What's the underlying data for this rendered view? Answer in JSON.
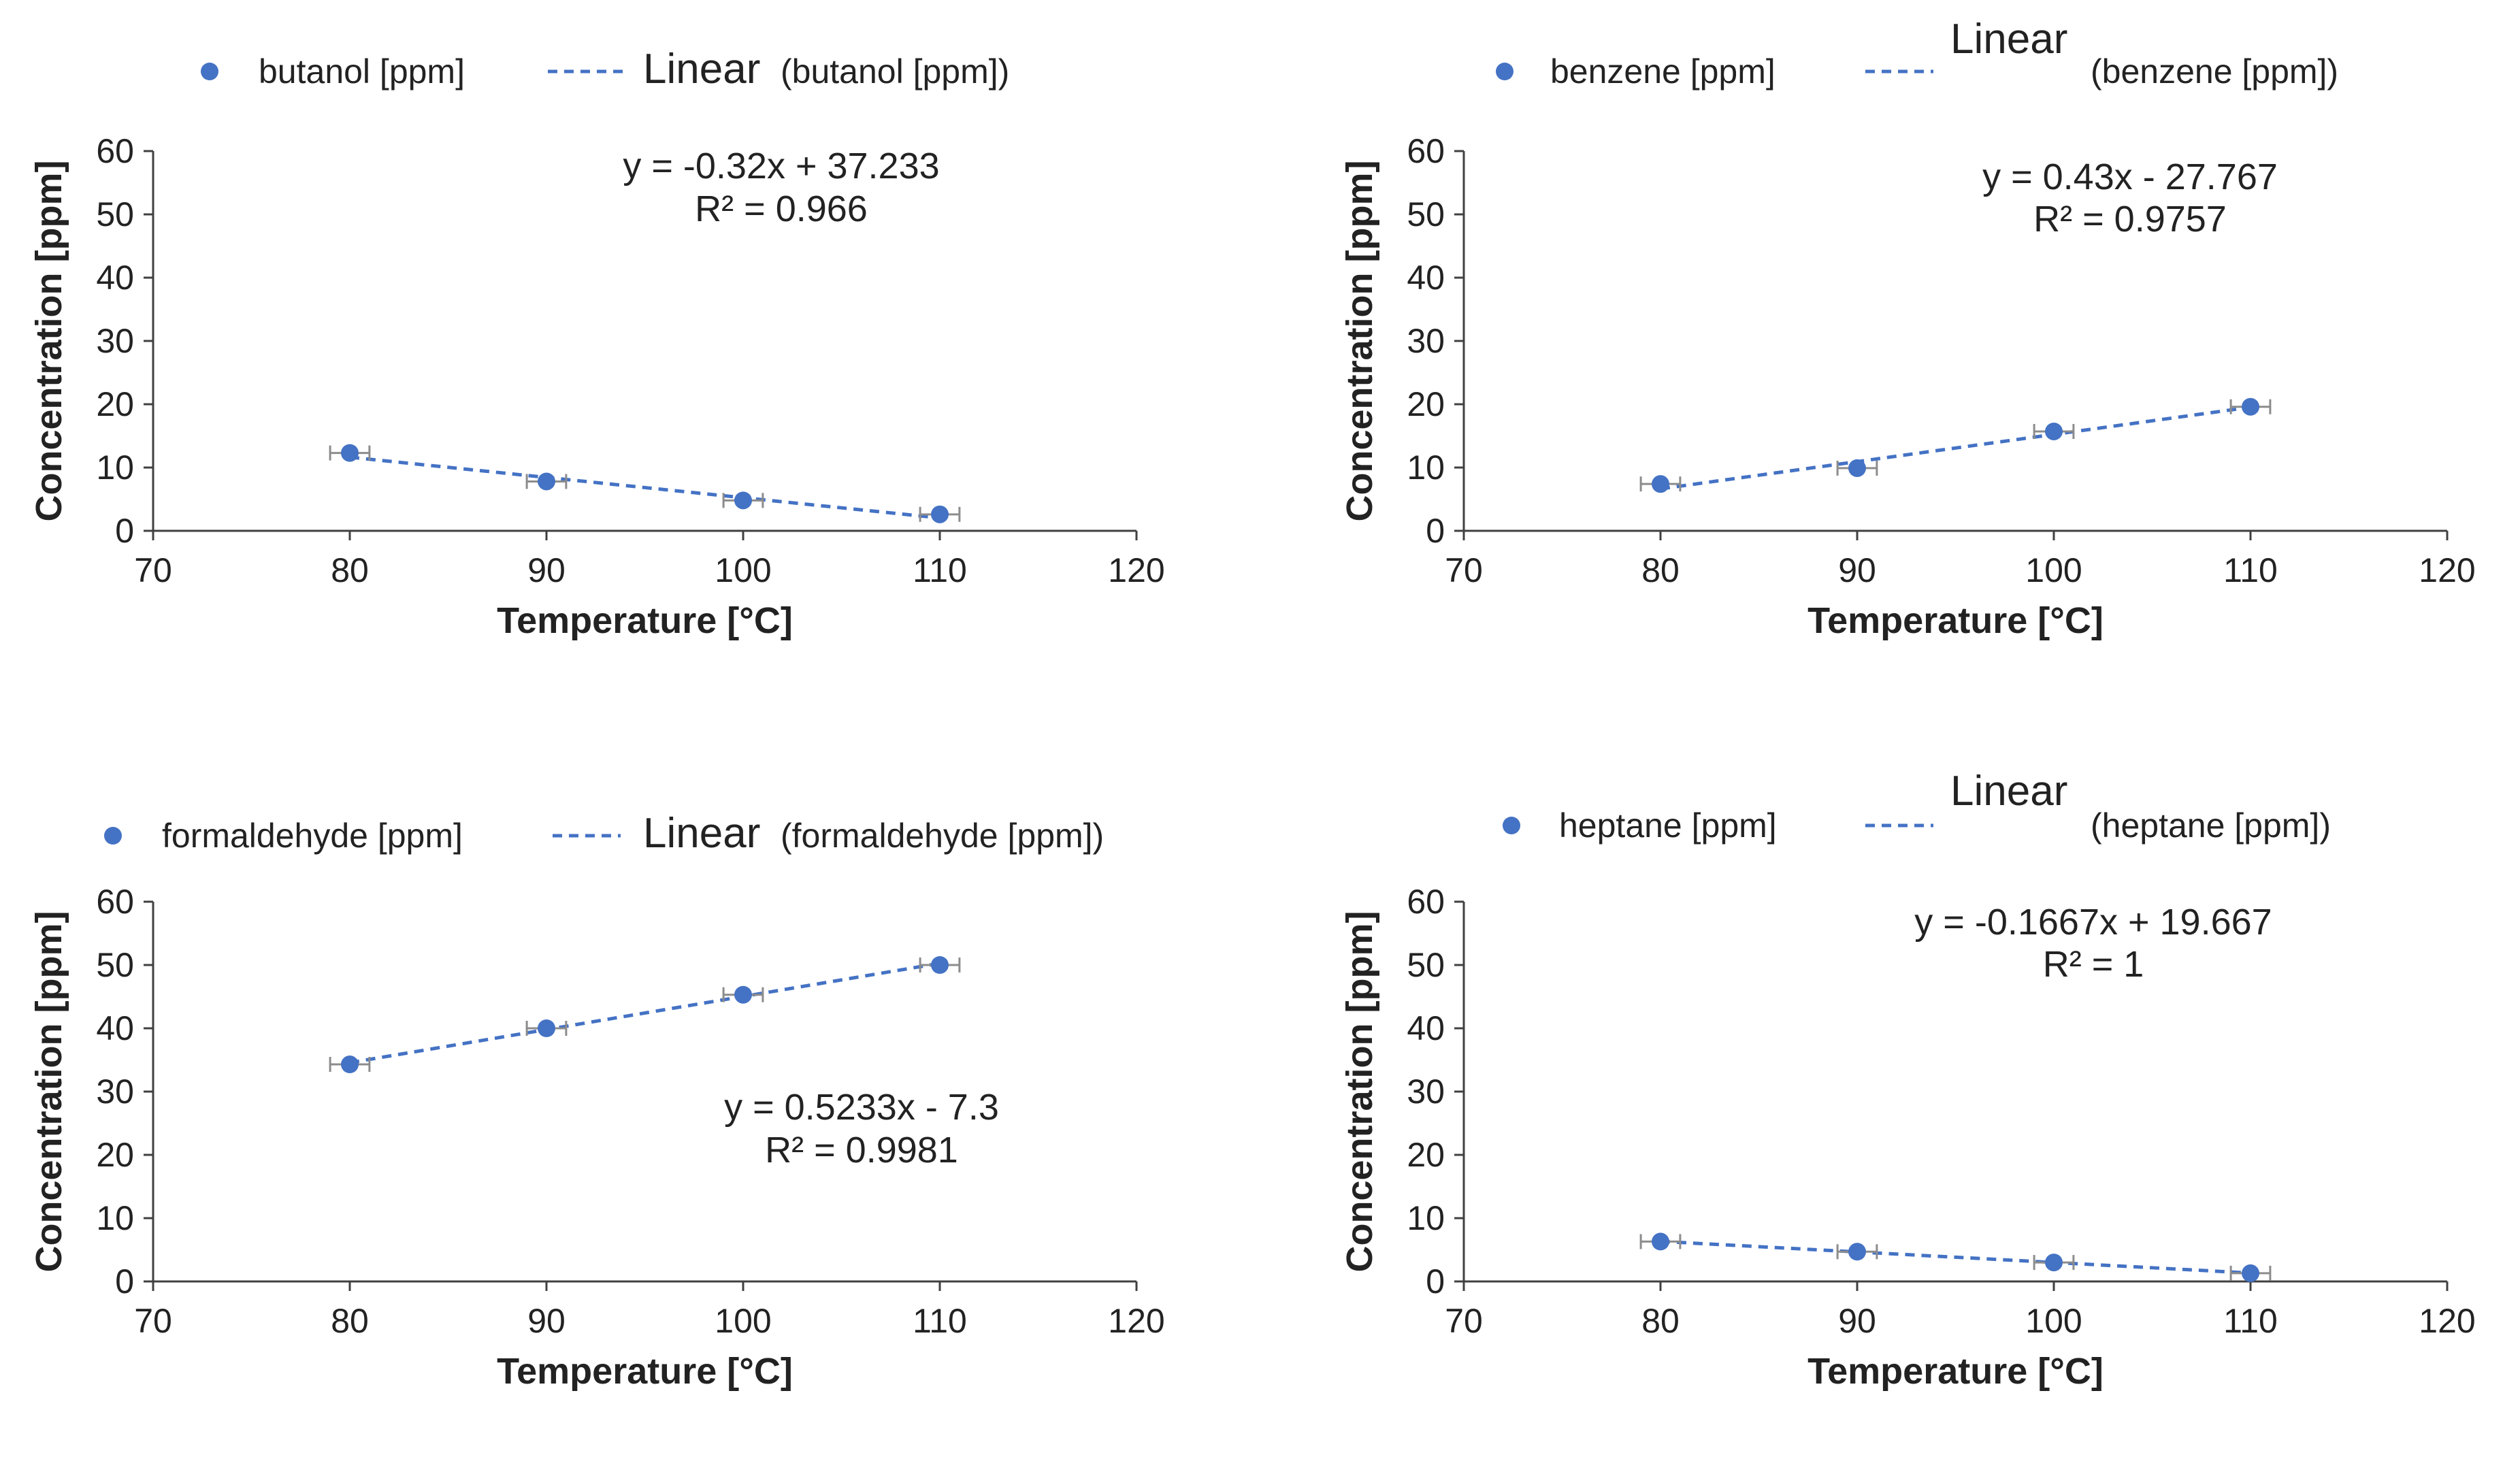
{
  "colors": {
    "series": "#4472c4",
    "error_bar": "#8c8c8c",
    "axis": "#404040",
    "text": "#222222",
    "background": "#ffffff"
  },
  "chart_data": [
    {
      "type": "scatter",
      "title": "",
      "series_name": "butanol [ppm]",
      "trend_prefix": "Linear",
      "trend_name": "(butanol [ppm])",
      "x": [
        80,
        90,
        100,
        110
      ],
      "y": [
        12.3,
        7.8,
        4.8,
        2.6
      ],
      "x_error": [
        1,
        1,
        1,
        1
      ],
      "xlabel": "Temperature [°C]",
      "ylabel": "Concentration [ppm]",
      "xlim": [
        70,
        120
      ],
      "ylim": [
        0,
        60
      ],
      "xticks": [
        70,
        80,
        90,
        100,
        110,
        120
      ],
      "yticks": [
        0,
        10,
        20,
        30,
        40,
        50,
        60
      ],
      "trend": {
        "slope": -0.32,
        "intercept": 37.233
      },
      "equation": "y = -0.32x + 37.233",
      "r2": "R² = 0.966",
      "legend_position": "top",
      "equation_position": "top-center"
    },
    {
      "type": "scatter",
      "title": "",
      "series_name": "benzene [ppm]",
      "trend_prefix": "Linear",
      "trend_name": "(benzene [ppm])",
      "x": [
        80,
        90,
        100,
        110
      ],
      "y": [
        7.4,
        9.9,
        15.7,
        19.6
      ],
      "x_error": [
        1,
        1,
        1,
        1
      ],
      "xlabel": "Temperature [°C]",
      "ylabel": "Concentration [ppm]",
      "xlim": [
        70,
        120
      ],
      "ylim": [
        0,
        60
      ],
      "xticks": [
        70,
        80,
        90,
        100,
        110,
        120
      ],
      "yticks": [
        0,
        10,
        20,
        30,
        40,
        50,
        60
      ],
      "trend": {
        "slope": 0.43,
        "intercept": -27.767
      },
      "equation": "y = 0.43x - 27.767",
      "r2": "R² = 0.9757",
      "legend_position": "top",
      "equation_position": "top-right"
    },
    {
      "type": "scatter",
      "title": "",
      "series_name": "formaldehyde [ppm]",
      "trend_prefix": "Linear",
      "trend_name": "(formaldehyde [ppm])",
      "x": [
        80,
        90,
        100,
        110
      ],
      "y": [
        34.3,
        40.0,
        45.3,
        50.0
      ],
      "x_error": [
        1,
        1,
        1,
        1
      ],
      "xlabel": "Temperature [°C]",
      "ylabel": "Concentration [ppm]",
      "xlim": [
        70,
        120
      ],
      "ylim": [
        0,
        60
      ],
      "xticks": [
        70,
        80,
        90,
        100,
        110,
        120
      ],
      "yticks": [
        0,
        10,
        20,
        30,
        40,
        50,
        60
      ],
      "trend": {
        "slope": 0.5233,
        "intercept": -7.3
      },
      "equation": "y = 0.5233x - 7.3",
      "r2": "R² = 0.9981",
      "legend_position": "top",
      "equation_position": "center-right"
    },
    {
      "type": "scatter",
      "title": "",
      "series_name": "heptane [ppm]",
      "trend_prefix": "Linear",
      "trend_name": "(heptane [ppm])",
      "x": [
        80,
        90,
        100,
        110
      ],
      "y": [
        6.3,
        4.7,
        3.0,
        1.3
      ],
      "x_error": [
        1,
        1,
        1,
        1
      ],
      "xlabel": "Temperature [°C]",
      "ylabel": "Concentration [ppm]",
      "xlim": [
        70,
        120
      ],
      "ylim": [
        0,
        60
      ],
      "xticks": [
        70,
        80,
        90,
        100,
        110,
        120
      ],
      "yticks": [
        0,
        10,
        20,
        30,
        40,
        50,
        60
      ],
      "trend": {
        "slope": -0.1667,
        "intercept": 19.667
      },
      "equation": "y = -0.1667x + 19.667",
      "r2": "R² = 1",
      "legend_position": "top",
      "equation_position": "top-center"
    }
  ]
}
